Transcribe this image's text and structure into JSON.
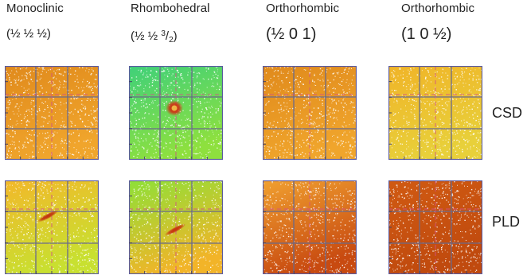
{
  "columns": [
    {
      "phase": "Monoclinic",
      "hkl": {
        "open": "(",
        "body": "½ ½ ½",
        "sup": "",
        "slash": "",
        "sub": "",
        "close": ")"
      }
    },
    {
      "phase": "Rhombohedral",
      "hkl": {
        "open": "(",
        "body": "½ ½ ",
        "sup": "3",
        "slash": "/",
        "sub": "2",
        "close": ")"
      }
    },
    {
      "phase": "Orthorhombic",
      "hkl": {
        "open": "(",
        "body": "½ 0 1",
        "sup": "",
        "slash": "",
        "sub": "",
        "close": ")"
      }
    },
    {
      "phase": "Orthorhombic",
      "hkl": {
        "open": "(",
        "body": "1 0 ½",
        "sup": "",
        "slash": "",
        "sub": "",
        "close": ")"
      }
    }
  ],
  "rows": [
    {
      "label": "CSD"
    },
    {
      "label": "PLD"
    }
  ],
  "maps": [
    [
      {
        "bg": "#e08a1c",
        "bg2": "#f0a52c"
      },
      {
        "bg": "#3fd07a",
        "bg2": "#8ee03e",
        "spot": "round",
        "spot_color": "#d42a10"
      },
      {
        "bg": "#e08a1c",
        "bg2": "#f0a52c"
      },
      {
        "bg": "#f0b428",
        "bg2": "#e8d03a"
      }
    ],
    [
      {
        "bg": "#f2b82a",
        "bg2": "#c8e030",
        "spot": "streak",
        "spot_color": "#c0300e"
      },
      {
        "bg": "#8ee038",
        "bg2": "#f2b428",
        "spot": "streak",
        "spot_color": "#c8300e"
      },
      {
        "bg": "#f0a030",
        "bg2": "#c84a10"
      },
      {
        "bg": "#d05a12",
        "bg2": "#c04a0e"
      }
    ]
  ],
  "colors": {
    "grid_line": "#6a6a8a",
    "frame": "#5a5aa0",
    "dashed_line": "#d2508a",
    "noise": "#ffffff"
  }
}
